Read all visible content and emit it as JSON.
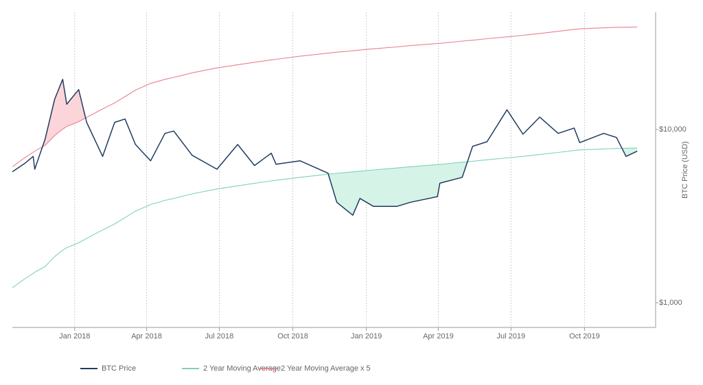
{
  "chart_data": {
    "type": "line",
    "log_y": true,
    "grid": "vertical",
    "legend": "bottom",
    "y_axis_side": "right",
    "y_label": "BTC Price (USD)",
    "x": [
      -78,
      -62,
      -52,
      -50,
      -37,
      -25,
      -15,
      -10,
      5,
      15,
      35,
      50,
      63,
      76,
      95,
      113,
      124,
      147,
      178,
      204,
      225,
      246,
      252,
      282,
      317,
      328,
      348,
      357,
      374,
      403,
      420,
      454,
      457,
      485,
      498,
      516,
      541,
      561,
      582,
      605,
      625,
      632,
      662,
      678,
      690,
      704
    ],
    "xlim": [
      -78,
      727
    ],
    "xticks": [
      {
        "value": 0,
        "label": "Jan 2018"
      },
      {
        "value": 90,
        "label": "Apr 2018"
      },
      {
        "value": 181,
        "label": "Jul 2018"
      },
      {
        "value": 273,
        "label": "Oct 2018"
      },
      {
        "value": 365,
        "label": "Jan 2019"
      },
      {
        "value": 455,
        "label": "Apr 2019"
      },
      {
        "value": 546,
        "label": "Jul 2019"
      },
      {
        "value": 638,
        "label": "Oct 2019"
      }
    ],
    "ylim": [
      720,
      47500
    ],
    "yticks": [
      {
        "value": 1000,
        "label": "$1,000"
      },
      {
        "value": 10000,
        "label": "$10,000"
      }
    ],
    "series": [
      {
        "name": "BTC Price",
        "color": "#1f3a5f",
        "values": [
          5700,
          6400,
          7000,
          5900,
          8800,
          15000,
          19500,
          14000,
          17000,
          11000,
          7000,
          11000,
          11500,
          8200,
          6600,
          9500,
          9800,
          7100,
          5900,
          8200,
          6200,
          7300,
          6300,
          6600,
          5600,
          3800,
          3200,
          4000,
          3600,
          3600,
          3800,
          4100,
          4900,
          5300,
          8000,
          8500,
          13000,
          9400,
          11800,
          9500,
          10200,
          8400,
          9500,
          9000,
          7000,
          7500
        ]
      },
      {
        "name": "2 Year Moving Average",
        "color": "#7fd1b9",
        "values": [
          1220,
          1380,
          1480,
          1500,
          1620,
          1850,
          2010,
          2080,
          2220,
          2350,
          2630,
          2850,
          3100,
          3380,
          3690,
          3900,
          4000,
          4250,
          4540,
          4730,
          4890,
          5050,
          5090,
          5300,
          5520,
          5590,
          5700,
          5750,
          5850,
          6000,
          6100,
          6280,
          6290,
          6480,
          6560,
          6690,
          6860,
          7000,
          7170,
          7380,
          7570,
          7630,
          7730,
          7780,
          7800,
          7820
        ]
      },
      {
        "name": "2 Year Moving Average x 5",
        "color": "#e8808f",
        "values": [
          6100,
          6900,
          7400,
          7500,
          8100,
          9250,
          10050,
          10400,
          11100,
          11750,
          13150,
          14250,
          15500,
          16900,
          18450,
          19500,
          20000,
          21250,
          22700,
          23650,
          24450,
          25250,
          25450,
          26500,
          27600,
          27950,
          28500,
          28750,
          29250,
          30000,
          30500,
          31400,
          31450,
          32400,
          32800,
          33450,
          34300,
          35000,
          35850,
          36900,
          37850,
          38150,
          38650,
          38900,
          39000,
          39100
        ]
      }
    ]
  }
}
